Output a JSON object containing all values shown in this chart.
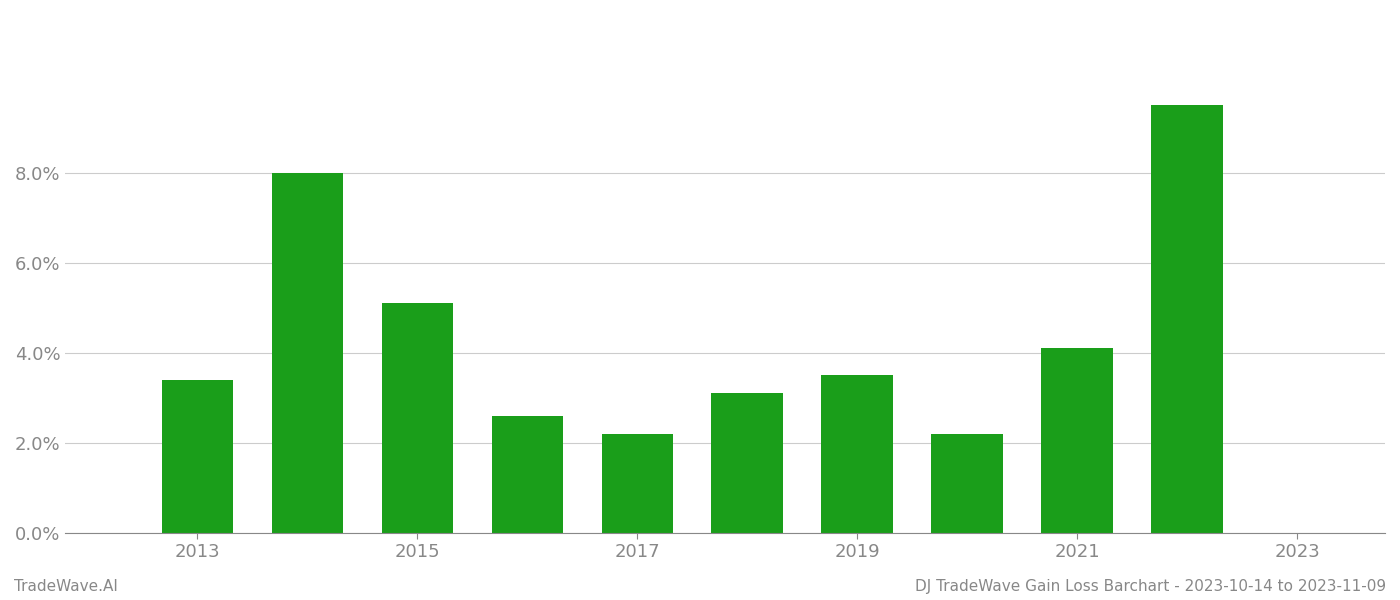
{
  "years": [
    2013,
    2014,
    2015,
    2016,
    2017,
    2018,
    2019,
    2020,
    2021,
    2022
  ],
  "values": [
    0.034,
    0.08,
    0.051,
    0.026,
    0.022,
    0.031,
    0.035,
    0.022,
    0.041,
    0.095
  ],
  "bar_color": "#1a9e1a",
  "background_color": "#ffffff",
  "ylim": [
    0,
    0.115
  ],
  "yticks": [
    0.0,
    0.02,
    0.04,
    0.06,
    0.08
  ],
  "xticks": [
    2013,
    2015,
    2017,
    2019,
    2021,
    2023
  ],
  "xlim": [
    2011.8,
    2023.8
  ],
  "footer_left": "TradeWave.AI",
  "footer_right": "DJ TradeWave Gain Loss Barchart - 2023-10-14 to 2023-11-09",
  "grid_color": "#cccccc",
  "tick_color": "#888888",
  "bar_width": 0.65,
  "tick_fontsize": 13,
  "footer_fontsize": 11
}
